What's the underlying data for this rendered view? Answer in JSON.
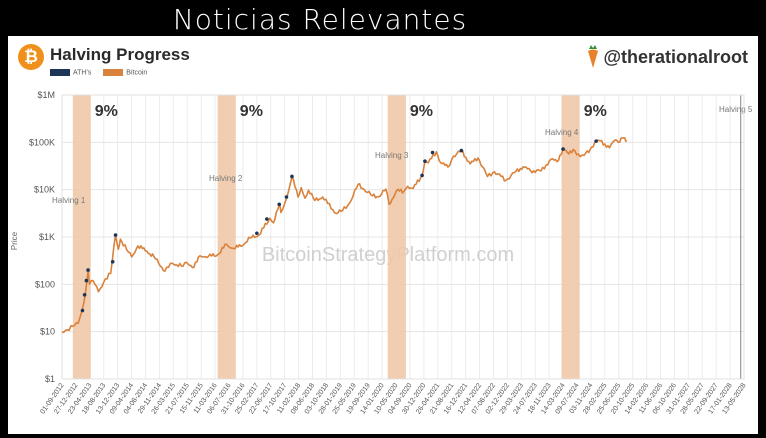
{
  "banner": {
    "title": "Noticias Relevantes"
  },
  "header": {
    "logo_glyph": "₿",
    "title": "Halving Progress",
    "handle": "@therationalroot",
    "handle_icon": "carrot-icon"
  },
  "watermark": "BitcoinStrategyPlatform.com",
  "colors": {
    "bitcoin": "#d9823b",
    "ath": "#1d3557",
    "halving_band": "#efc9a8",
    "logo": "#f0901c"
  },
  "chart_data": {
    "type": "line",
    "title": "Halving Progress",
    "ylabel": "Price",
    "yscale": "log",
    "ylim": [
      1,
      1000000
    ],
    "y_ticks": [
      {
        "value": 1,
        "label": "$1"
      },
      {
        "value": 10,
        "label": "$10"
      },
      {
        "value": 100,
        "label": "$100"
      },
      {
        "value": 1000,
        "label": "$1K"
      },
      {
        "value": 10000,
        "label": "$10K"
      },
      {
        "value": 100000,
        "label": "$100K"
      },
      {
        "value": 1000000,
        "label": "$1M"
      }
    ],
    "xlim": [
      "2012-09-01",
      "2028-05-13"
    ],
    "x_tick_labels": [
      "01-09-2012",
      "27-12-2012",
      "23-04-2013",
      "18-08-2013",
      "13-12-2013",
      "09-04-2014",
      "04-08-2014",
      "29-11-2014",
      "26-03-2015",
      "21-07-2015",
      "15-11-2015",
      "11-03-2016",
      "06-07-2016",
      "31-10-2016",
      "25-02-2017",
      "22-06-2017",
      "17-10-2017",
      "11-02-2018",
      "08-06-2018",
      "03-10-2018",
      "28-01-2019",
      "25-05-2019",
      "19-09-2019",
      "14-01-2020",
      "10-05-2020",
      "04-09-2020",
      "30-12-2020",
      "26-04-2021",
      "21-08-2021",
      "16-12-2021",
      "12-04-2022",
      "07-08-2022",
      "02-12-2022",
      "29-03-2023",
      "24-07-2023",
      "18-11-2023",
      "14-03-2024",
      "09-07-2024",
      "03-11-2024",
      "28-02-2025",
      "25-06-2025",
      "20-10-2025",
      "14-02-2026",
      "11-06-2026",
      "06-10-2026",
      "31-01-2027",
      "28-05-2027",
      "22-09-2027",
      "17-01-2028",
      "13-05-2028"
    ],
    "halvings": [
      {
        "label": "Halving 1",
        "band": [
          "2012-12-01",
          "2013-05-01"
        ],
        "percent": "9%"
      },
      {
        "label": "Halving 2",
        "band": [
          "2016-04-01",
          "2016-09-01"
        ],
        "percent": "9%"
      },
      {
        "label": "Halving 3",
        "band": [
          "2020-03-01",
          "2020-08-01"
        ],
        "percent": "9%"
      },
      {
        "label": "Halving 4",
        "band": [
          "2024-03-01",
          "2024-08-01"
        ],
        "percent": "9%"
      },
      {
        "label": "Halving 5",
        "date": "2028-04-15"
      }
    ],
    "series": [
      {
        "name": "ATH's",
        "points": [
          [
            "2013-02-20",
            28
          ],
          [
            "2013-03-10",
            60
          ],
          [
            "2013-03-25",
            120
          ],
          [
            "2013-04-08",
            200
          ],
          [
            "2013-11-01",
            300
          ],
          [
            "2013-11-25",
            1100
          ],
          [
            "2017-02-25",
            1200
          ],
          [
            "2017-05-20",
            2400
          ],
          [
            "2017-09-01",
            4900
          ],
          [
            "2017-11-01",
            7000
          ],
          [
            "2017-12-17",
            19000
          ],
          [
            "2020-12-15",
            20000
          ],
          [
            "2021-01-08",
            40000
          ],
          [
            "2021-03-13",
            61000
          ],
          [
            "2021-11-10",
            67000
          ],
          [
            "2024-03-14",
            72000
          ],
          [
            "2024-12-17",
            106000
          ]
        ]
      },
      {
        "name": "Bitcoin",
        "points": [
          [
            "2012-09-01",
            10
          ],
          [
            "2012-10-15",
            11
          ],
          [
            "2012-12-01",
            13
          ],
          [
            "2013-01-15",
            15
          ],
          [
            "2013-02-15",
            27
          ],
          [
            "2013-03-15",
            60
          ],
          [
            "2013-04-09",
            200
          ],
          [
            "2013-04-20",
            100
          ],
          [
            "2013-05-20",
            120
          ],
          [
            "2013-07-05",
            70
          ],
          [
            "2013-09-01",
            130
          ],
          [
            "2013-10-15",
            170
          ],
          [
            "2013-11-25",
            1100
          ],
          [
            "2013-12-18",
            550
          ],
          [
            "2014-01-05",
            900
          ],
          [
            "2014-02-25",
            550
          ],
          [
            "2014-04-10",
            380
          ],
          [
            "2014-06-01",
            650
          ],
          [
            "2014-08-15",
            500
          ],
          [
            "2014-10-15",
            380
          ],
          [
            "2015-01-14",
            190
          ],
          [
            "2015-03-15",
            280
          ],
          [
            "2015-06-15",
            240
          ],
          [
            "2015-07-15",
            290
          ],
          [
            "2015-09-15",
            230
          ],
          [
            "2015-11-05",
            400
          ],
          [
            "2016-01-15",
            390
          ],
          [
            "2016-04-01",
            420
          ],
          [
            "2016-06-15",
            700
          ],
          [
            "2016-08-01",
            580
          ],
          [
            "2016-10-15",
            640
          ],
          [
            "2016-12-31",
            960
          ],
          [
            "2017-03-15",
            1100
          ],
          [
            "2017-06-15",
            2500
          ],
          [
            "2017-07-15",
            2000
          ],
          [
            "2017-09-01",
            4800
          ],
          [
            "2017-09-15",
            3300
          ],
          [
            "2017-11-01",
            6500
          ],
          [
            "2017-12-17",
            19000
          ],
          [
            "2018-02-06",
            7000
          ],
          [
            "2018-03-05",
            11000
          ],
          [
            "2018-04-06",
            6600
          ],
          [
            "2018-05-05",
            9700
          ],
          [
            "2018-06-28",
            5900
          ],
          [
            "2018-09-01",
            7000
          ],
          [
            "2018-11-25",
            3800
          ],
          [
            "2018-12-15",
            3200
          ],
          [
            "2019-02-15",
            3600
          ],
          [
            "2019-04-15",
            5200
          ],
          [
            "2019-06-26",
            12900
          ],
          [
            "2019-08-15",
            10200
          ],
          [
            "2019-10-25",
            7400
          ],
          [
            "2019-12-15",
            7100
          ],
          [
            "2020-02-15",
            10300
          ],
          [
            "2020-03-13",
            4900
          ],
          [
            "2020-05-15",
            9500
          ],
          [
            "2020-07-15",
            9200
          ],
          [
            "2020-08-15",
            11800
          ],
          [
            "2020-10-01",
            10600
          ],
          [
            "2020-12-15",
            20000
          ],
          [
            "2021-01-08",
            40000
          ],
          [
            "2021-02-05",
            37000
          ],
          [
            "2021-04-14",
            63000
          ],
          [
            "2021-05-20",
            37000
          ],
          [
            "2021-07-20",
            30000
          ],
          [
            "2021-09-05",
            51000
          ],
          [
            "2021-11-10",
            67000
          ],
          [
            "2022-01-24",
            35000
          ],
          [
            "2022-03-30",
            47000
          ],
          [
            "2022-06-18",
            19000
          ],
          [
            "2022-08-15",
            24000
          ],
          [
            "2022-11-21",
            15800
          ],
          [
            "2023-01-30",
            23000
          ],
          [
            "2023-04-14",
            30500
          ],
          [
            "2023-06-15",
            25000
          ],
          [
            "2023-09-11",
            25000
          ],
          [
            "2023-12-05",
            44000
          ],
          [
            "2024-01-23",
            39000
          ],
          [
            "2024-03-14",
            72000
          ],
          [
            "2024-05-01",
            57000
          ],
          [
            "2024-06-07",
            71000
          ],
          [
            "2024-08-05",
            50000
          ],
          [
            "2024-09-06",
            53000
          ],
          [
            "2024-10-29",
            72000
          ],
          [
            "2024-12-17",
            106000
          ],
          [
            "2025-01-20",
            108000
          ],
          [
            "2025-04-08",
            77000
          ],
          [
            "2025-05-22",
            111000
          ],
          [
            "2025-06-22",
            100000
          ],
          [
            "2025-07-14",
            122000
          ],
          [
            "2025-08-14",
            124000
          ],
          [
            "2025-09-01",
            108000
          ]
        ]
      }
    ]
  }
}
